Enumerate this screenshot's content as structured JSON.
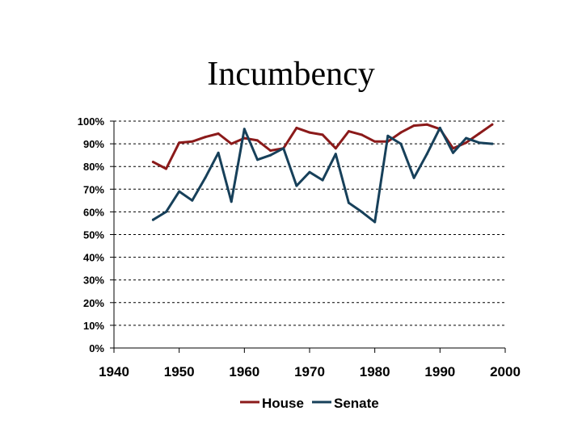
{
  "chart_data": {
    "type": "line",
    "title": "Incumbency",
    "xlabel": "",
    "ylabel": "",
    "xlim": [
      1940,
      2000
    ],
    "ylim": [
      0,
      100
    ],
    "xticks": [
      1940,
      1950,
      1960,
      1970,
      1980,
      1990,
      2000
    ],
    "xtick_labels": [
      "1940",
      "1950",
      "1960",
      "1970",
      "1980",
      "1990",
      "2000"
    ],
    "yticks": [
      0,
      10,
      20,
      30,
      40,
      50,
      60,
      70,
      80,
      90,
      100
    ],
    "ytick_labels": [
      "0%",
      "10%",
      "20%",
      "30%",
      "40%",
      "50%",
      "60%",
      "70%",
      "80%",
      "90%",
      "100%"
    ],
    "grid": true,
    "legend_position": "bottom",
    "x": [
      1946,
      1948,
      1950,
      1952,
      1954,
      1956,
      1958,
      1960,
      1962,
      1964,
      1966,
      1968,
      1970,
      1972,
      1974,
      1976,
      1978,
      1980,
      1982,
      1984,
      1986,
      1988,
      1990,
      1992,
      1994,
      1996,
      1998
    ],
    "series": [
      {
        "name": "House",
        "color": "#8B1A1A",
        "values": [
          82,
          79,
          90.5,
          91,
          93,
          94.5,
          90,
          92.5,
          91.5,
          87,
          88,
          97,
          95,
          94,
          88,
          95.5,
          94,
          91,
          91,
          95,
          98,
          98.5,
          96.5,
          88,
          90.5,
          94.5,
          98.5
        ]
      },
      {
        "name": "Senate",
        "color": "#17405A",
        "values": [
          56.5,
          60,
          69,
          65,
          75,
          86,
          64.5,
          96.5,
          83,
          85,
          88,
          71.5,
          77.5,
          74,
          85.5,
          64,
          60,
          55.5,
          93.5,
          90,
          75,
          85.5,
          97,
          86,
          92.5,
          90.5,
          90
        ]
      }
    ]
  }
}
